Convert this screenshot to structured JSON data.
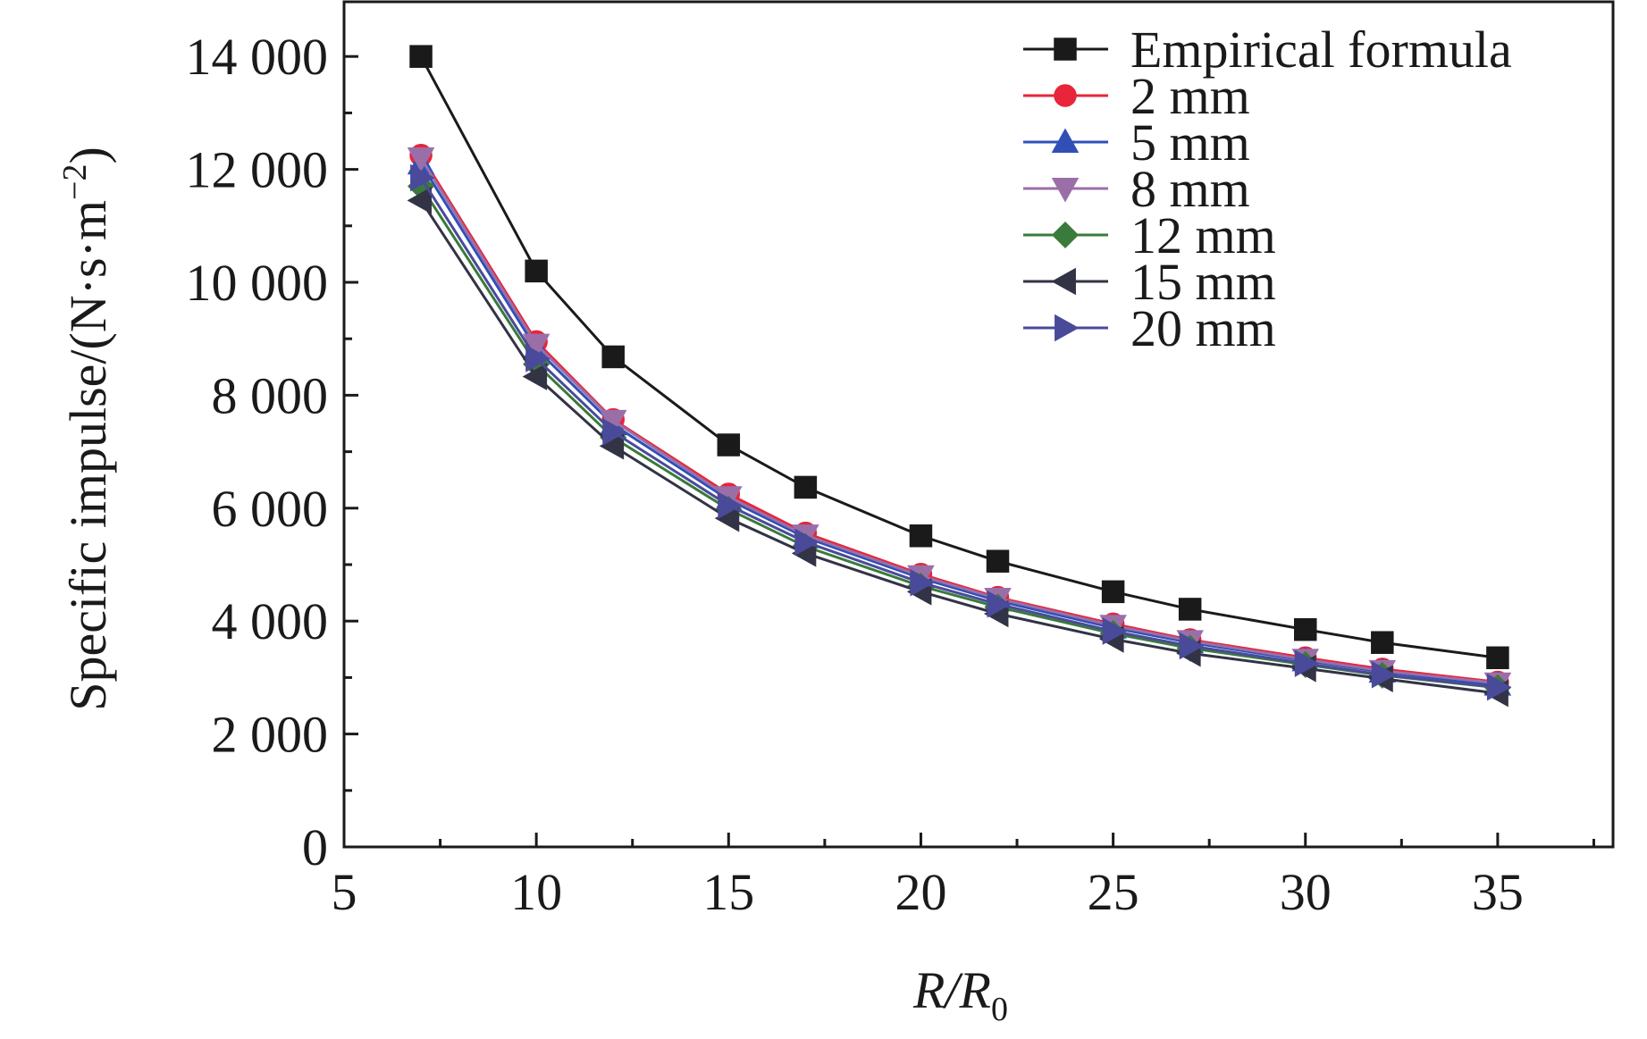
{
  "chart_data": {
    "type": "line",
    "xlabel": {
      "main": "R/R",
      "sub": "0"
    },
    "ylabel": "Specific impulse/(N·s·m",
    "ylabel_sup": "−2",
    "ylabel_close": ")",
    "xlim": [
      5,
      38
    ],
    "ylim": [
      0,
      15000
    ],
    "xticks": [
      5,
      10,
      15,
      20,
      25,
      30,
      35
    ],
    "xtick_labels": [
      "5",
      "10",
      "15",
      "20",
      "25",
      "30",
      "35"
    ],
    "yticks": [
      0,
      2000,
      4000,
      6000,
      8000,
      10000,
      12000,
      14000
    ],
    "ytick_labels": [
      "0",
      "2 000",
      "4 000",
      "6 000",
      "8 000",
      "10 000",
      "12 000",
      "14 000"
    ],
    "grid": false,
    "legend_position": "top-right",
    "x": [
      7,
      10,
      12,
      15,
      17,
      20,
      22,
      25,
      27,
      30,
      32,
      35
    ],
    "series": [
      {
        "name": "Empirical formula",
        "marker": "square",
        "color": "#1a1a1a",
        "values": [
          14000,
          10200,
          8680,
          7120,
          6370,
          5510,
          5060,
          4520,
          4210,
          3850,
          3620,
          3350
        ]
      },
      {
        "name": "2 mm",
        "marker": "circle",
        "color": "#e8253a",
        "values": [
          12250,
          8950,
          7570,
          6250,
          5560,
          4830,
          4420,
          3950,
          3670,
          3350,
          3150,
          2920
        ]
      },
      {
        "name": "5 mm",
        "marker": "triangle-up",
        "color": "#3050b8",
        "values": [
          12100,
          8820,
          7480,
          6150,
          5480,
          4760,
          4360,
          3880,
          3620,
          3300,
          3100,
          2870
        ]
      },
      {
        "name": "8 mm",
        "marker": "triangle-down",
        "color": "#9a6fa8",
        "values": [
          12200,
          8900,
          7550,
          6200,
          5520,
          4800,
          4400,
          3920,
          3650,
          3320,
          3120,
          2900
        ]
      },
      {
        "name": "12 mm",
        "marker": "diamond",
        "color": "#3a7a3a",
        "values": [
          11700,
          8550,
          7250,
          5980,
          5320,
          4620,
          4250,
          3780,
          3520,
          3230,
          3040,
          2820
        ]
      },
      {
        "name": "15 mm",
        "marker": "triangle-left",
        "color": "#333346",
        "values": [
          11450,
          8330,
          7100,
          5820,
          5200,
          4520,
          4130,
          3680,
          3430,
          3160,
          2980,
          2720
        ]
      },
      {
        "name": "20 mm",
        "marker": "triangle-right",
        "color": "#4a4a9a",
        "values": [
          11850,
          8650,
          7350,
          6050,
          5400,
          4680,
          4300,
          3820,
          3560,
          3250,
          3050,
          2830
        ]
      }
    ]
  }
}
